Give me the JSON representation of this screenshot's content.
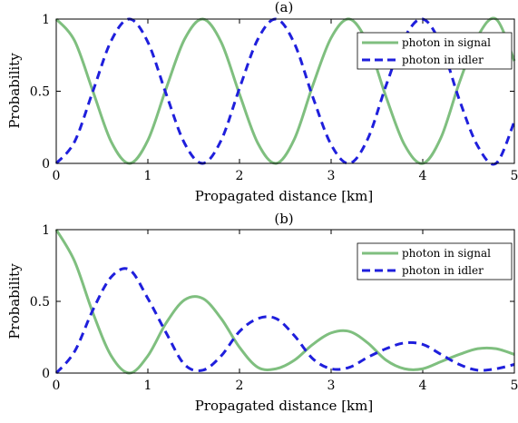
{
  "chart_data": [
    {
      "type": "line",
      "title": "(a)",
      "xlabel": "Propagated distance [km]",
      "ylabel": "Probability",
      "xlim": [
        0,
        5
      ],
      "ylim": [
        0,
        1
      ],
      "xticks": [
        0,
        1,
        2,
        3,
        4,
        5
      ],
      "yticks": [
        0,
        0.5,
        1
      ],
      "grid": false,
      "legend_position": "top-right",
      "series": [
        {
          "name": "photon in signal",
          "color": "#7fbf7f",
          "style": "solid",
          "x": [
            0,
            0.2,
            0.4,
            0.6,
            0.8,
            1.0,
            1.2,
            1.4,
            1.6,
            1.8,
            2.0,
            2.2,
            2.4,
            2.6,
            2.8,
            3.0,
            3.2,
            3.4,
            3.6,
            3.8,
            4.0,
            4.2,
            4.4,
            4.6,
            4.8,
            5.0
          ],
          "y": [
            1.0,
            0.85,
            0.5,
            0.15,
            0.0,
            0.16,
            0.52,
            0.86,
            1.0,
            0.84,
            0.48,
            0.14,
            0.0,
            0.17,
            0.54,
            0.87,
            1.0,
            0.83,
            0.46,
            0.13,
            0.0,
            0.18,
            0.56,
            0.88,
            1.0,
            0.71
          ]
        },
        {
          "name": "photon in idler",
          "color": "#1f1fdc",
          "style": "dashed",
          "x": [
            0,
            0.2,
            0.4,
            0.6,
            0.8,
            1.0,
            1.2,
            1.4,
            1.6,
            1.8,
            2.0,
            2.2,
            2.4,
            2.6,
            2.8,
            3.0,
            3.2,
            3.4,
            3.6,
            3.8,
            4.0,
            4.2,
            4.4,
            4.6,
            4.8,
            5.0
          ],
          "y": [
            0.0,
            0.15,
            0.5,
            0.85,
            1.0,
            0.84,
            0.48,
            0.14,
            0.0,
            0.16,
            0.52,
            0.86,
            1.0,
            0.83,
            0.46,
            0.13,
            0.0,
            0.17,
            0.54,
            0.87,
            1.0,
            0.82,
            0.44,
            0.12,
            0.0,
            0.29
          ]
        }
      ]
    },
    {
      "type": "line",
      "title": "(b)",
      "xlabel": "Propagated distance [km]",
      "ylabel": "Probability",
      "xlim": [
        0,
        5
      ],
      "ylim": [
        0,
        1
      ],
      "xticks": [
        0,
        1,
        2,
        3,
        4,
        5
      ],
      "yticks": [
        0,
        0.5,
        1
      ],
      "grid": false,
      "legend_position": "top-right",
      "series": [
        {
          "name": "photon in signal",
          "color": "#7fbf7f",
          "style": "solid",
          "x": [
            0,
            0.2,
            0.4,
            0.6,
            0.8,
            1.0,
            1.2,
            1.4,
            1.6,
            1.8,
            2.0,
            2.2,
            2.4,
            2.6,
            2.8,
            3.0,
            3.2,
            3.4,
            3.6,
            3.8,
            4.0,
            4.2,
            4.4,
            4.6,
            4.8,
            5.0
          ],
          "y": [
            1.0,
            0.78,
            0.42,
            0.12,
            0.0,
            0.12,
            0.35,
            0.51,
            0.52,
            0.38,
            0.18,
            0.04,
            0.03,
            0.09,
            0.2,
            0.28,
            0.29,
            0.21,
            0.09,
            0.03,
            0.03,
            0.08,
            0.13,
            0.17,
            0.17,
            0.13
          ]
        },
        {
          "name": "photon in idler",
          "color": "#1f1fdc",
          "style": "dashed",
          "x": [
            0,
            0.2,
            0.4,
            0.6,
            0.8,
            1.0,
            1.2,
            1.4,
            1.6,
            1.8,
            2.0,
            2.2,
            2.4,
            2.6,
            2.8,
            3.0,
            3.2,
            3.4,
            3.6,
            3.8,
            4.0,
            4.2,
            4.4,
            4.6,
            4.8,
            5.0
          ],
          "y": [
            0.0,
            0.15,
            0.44,
            0.67,
            0.72,
            0.52,
            0.28,
            0.06,
            0.02,
            0.12,
            0.29,
            0.38,
            0.38,
            0.26,
            0.1,
            0.03,
            0.04,
            0.11,
            0.17,
            0.21,
            0.2,
            0.13,
            0.06,
            0.02,
            0.03,
            0.06
          ]
        }
      ]
    }
  ]
}
